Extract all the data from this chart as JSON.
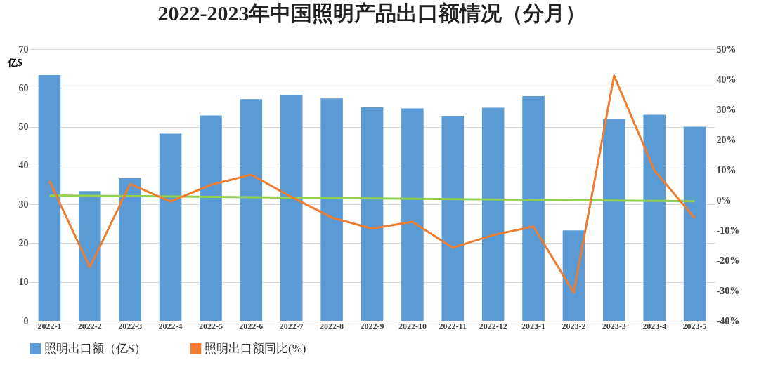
{
  "chart_data": {
    "type": "bar",
    "title": "2022-2023年中国照明产品出口额情况（分月）",
    "ylabel": "亿$",
    "categories": [
      "2022-1",
      "2022-2",
      "2022-3",
      "2022-4",
      "2022-5",
      "2022-6",
      "2022-7",
      "2022-8",
      "2022-9",
      "2022-10",
      "2022-11",
      "2022-12",
      "2023-1",
      "2023-2",
      "2023-3",
      "2023-4",
      "2023-5"
    ],
    "series": [
      {
        "name": "照明出口额（亿$）",
        "color": "#5b9bd5",
        "values": [
          63.3,
          33.4,
          36.7,
          48.2,
          52.9,
          57.1,
          58.2,
          57.3,
          55.0,
          54.7,
          52.8,
          54.9,
          57.9,
          23.3,
          52.0,
          53.1,
          50.0
        ]
      },
      {
        "name": "照明出口额同比(%)",
        "type": "line",
        "axis": "y2",
        "color": "#ed7d31",
        "values": [
          6.3,
          -22.3,
          5.3,
          -0.5,
          5.0,
          8.4,
          1.0,
          -5.8,
          -9.5,
          -7.2,
          -15.8,
          -11.6,
          -8.8,
          -30.7,
          41.2,
          9.8,
          -6.0
        ]
      },
      {
        "type": "line",
        "color": "#92d050",
        "x": [
          "2022-1",
          "2023-5"
        ],
        "values": [
          32.3,
          30.8
        ]
      }
    ],
    "ylim": [
      0,
      70
    ],
    "yticks": [
      0,
      10,
      20,
      30,
      40,
      50,
      60,
      70
    ],
    "y2lim": [
      -40,
      50
    ],
    "y2ticks": [
      {
        "value": -40,
        "label": "-40%"
      },
      {
        "value": -30,
        "label": "-30%"
      },
      {
        "value": -20,
        "label": "-20%"
      },
      {
        "value": -10,
        "label": "-10%"
      },
      {
        "value": 0,
        "label": "0%"
      },
      {
        "value": 10,
        "label": "10%"
      },
      {
        "value": 20,
        "label": "20%"
      },
      {
        "value": 30,
        "label": "30%"
      },
      {
        "value": 40,
        "label": "40%"
      },
      {
        "value": 50,
        "label": "50%"
      }
    ],
    "grid": "y",
    "legend": "bottom",
    "marker": "none",
    "line_style": "solid"
  }
}
